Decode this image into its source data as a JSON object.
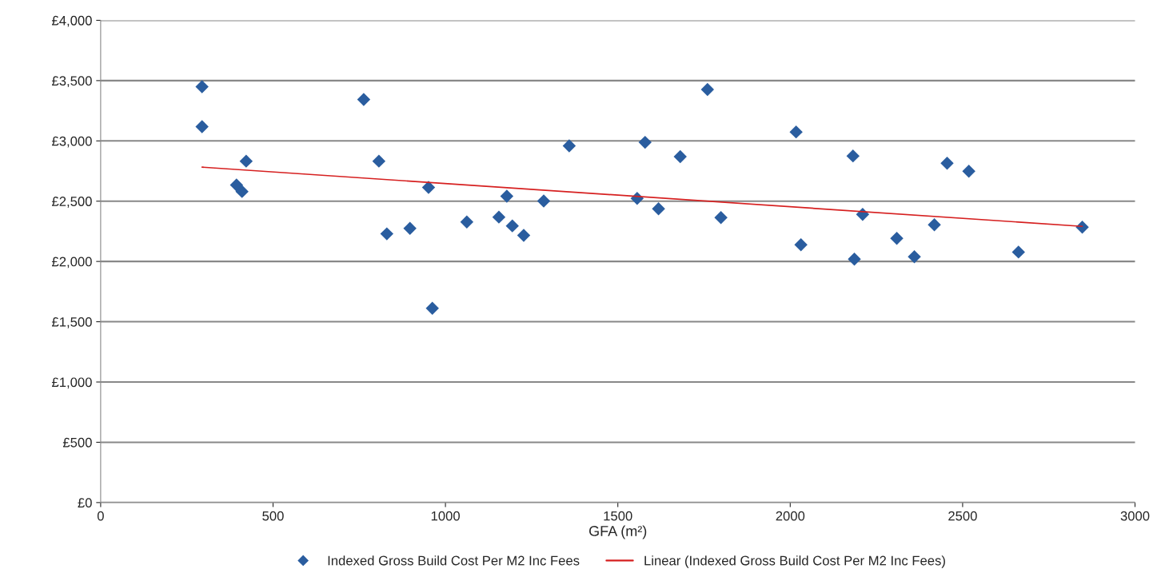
{
  "chart_data": {
    "type": "scatter",
    "xlabel": "GFA (m²)",
    "xlim": [
      0,
      3000
    ],
    "xticks": [
      0,
      500,
      1000,
      1500,
      2000,
      2500,
      3000
    ],
    "ylim": [
      0,
      4000
    ],
    "yticks": [
      {
        "value": 0,
        "label": "£0"
      },
      {
        "value": 500,
        "label": "£500"
      },
      {
        "value": 1000,
        "label": "£1,000"
      },
      {
        "value": 1500,
        "label": "£1,500"
      },
      {
        "value": 2000,
        "label": "£2,000"
      },
      {
        "value": 2500,
        "label": "£2,500"
      },
      {
        "value": 3000,
        "label": "£3,000"
      },
      {
        "value": 3500,
        "label": "£3,500"
      },
      {
        "value": 4000,
        "label": "£4,000"
      }
    ],
    "grid": "y",
    "legend": "bottom",
    "series": [
      {
        "name": "Indexed Gross Build Cost Per M2 Inc Fees",
        "marker": "diamond",
        "color": "#2a5d9f",
        "x": [
          294,
          294,
          394,
          410,
          422,
          763,
          807,
          830,
          897,
          951,
          962,
          1062,
          1155,
          1178,
          1194,
          1227,
          1285,
          1359,
          1556,
          1579,
          1618,
          1681,
          1760,
          1799,
          2017,
          2031,
          2182,
          2186,
          2210,
          2309,
          2360,
          2418,
          2455,
          2518,
          2662,
          2847
        ],
        "values": [
          3449,
          3118,
          2634,
          2580,
          2832,
          3343,
          2832,
          2229,
          2275,
          2614,
          1612,
          2328,
          2368,
          2541,
          2295,
          2216,
          2501,
          2959,
          2523,
          2988,
          2437,
          2869,
          3426,
          2364,
          3074,
          2138,
          2875,
          2019,
          2390,
          2191,
          2039,
          2304,
          2815,
          2749,
          2078,
          2284
        ]
      },
      {
        "name": "Linear (Indexed Gross Build Cost Per M2 Inc Fees)",
        "type": "line",
        "marker": "none",
        "line_style": "solid",
        "color": "#d62020",
        "x": [
          294,
          2847
        ],
        "values": [
          2782,
          2291
        ]
      }
    ]
  }
}
